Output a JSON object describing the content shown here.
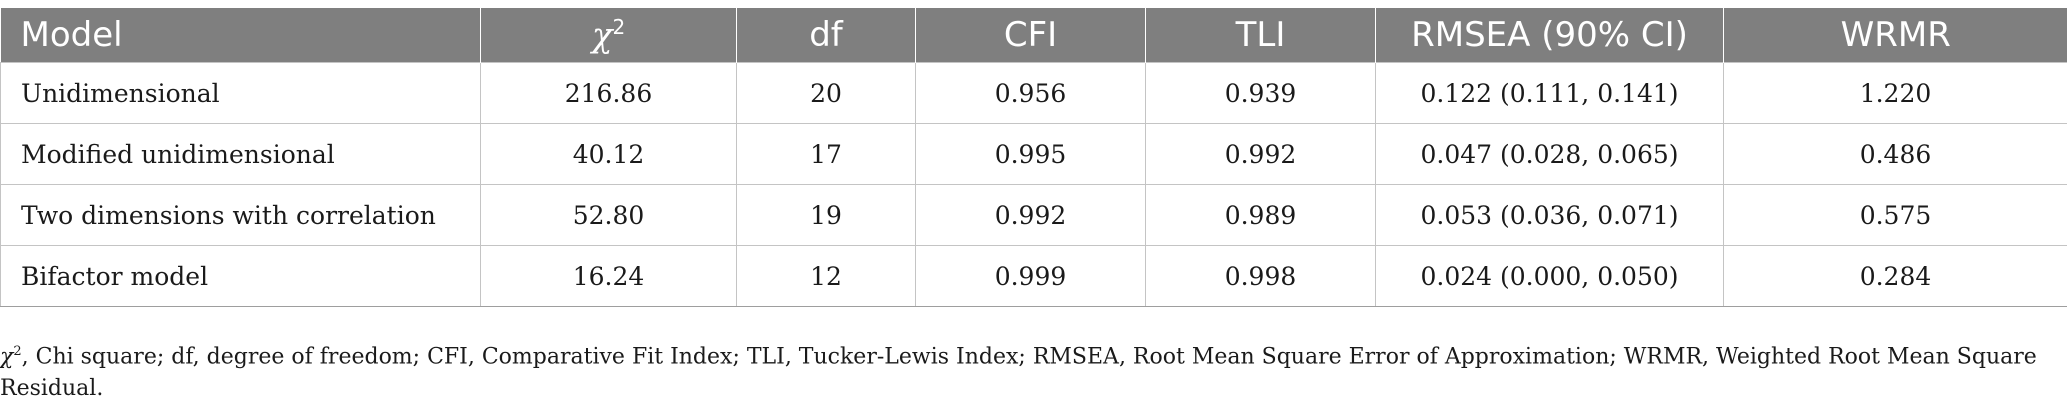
{
  "table": {
    "headers": {
      "model": "Model",
      "chi_symbol": "χ",
      "chi_exp": "2",
      "df": "df",
      "cfi": "CFI",
      "tli": "TLI",
      "rmsea": "RMSEA (90% CI)",
      "wrmr": "WRMR"
    },
    "rows": [
      {
        "model": "Unidimensional",
        "chi2": "216.86",
        "df": "20",
        "cfi": "0.956",
        "tli": "0.939",
        "rmsea": "0.122 (0.111, 0.141)",
        "wrmr": "1.220"
      },
      {
        "model": "Modified unidimensional",
        "chi2": "40.12",
        "df": "17",
        "cfi": "0.995",
        "tli": "0.992",
        "rmsea": "0.047 (0.028, 0.065)",
        "wrmr": "0.486"
      },
      {
        "model": "Two dimensions with correlation",
        "chi2": "52.80",
        "df": "19",
        "cfi": "0.992",
        "tli": "0.989",
        "rmsea": "0.053 (0.036, 0.071)",
        "wrmr": "0.575"
      },
      {
        "model": "Bifactor model",
        "chi2": "16.24",
        "df": "12",
        "cfi": "0.999",
        "tli": "0.998",
        "rmsea": "0.024 (0.000, 0.050)",
        "wrmr": "0.284"
      }
    ]
  },
  "footnote": {
    "chi_symbol": "χ",
    "chi_exp": "2",
    "text": ", Chi square; df, degree of freedom; CFI, Comparative Fit Index; TLI, Tucker-Lewis Index; RMSEA, Root Mean Square Error of Approximation; WRMR, Weighted Root Mean Square Residual."
  },
  "colors": {
    "header_bg": "#7f7f7f",
    "header_text": "#ffffff",
    "grid": "#c4c4c4"
  }
}
